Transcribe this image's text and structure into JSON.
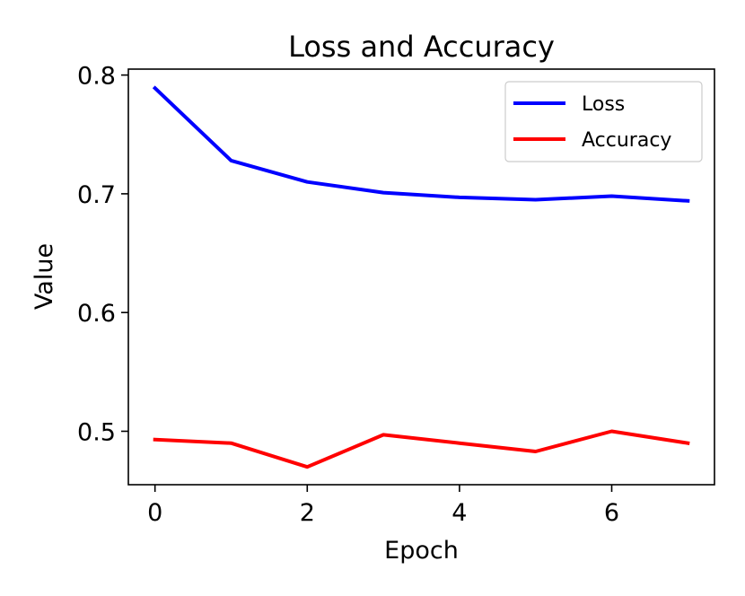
{
  "chart_data": {
    "type": "line",
    "title": "Loss and Accuracy",
    "xlabel": "Epoch",
    "ylabel": "Value",
    "x": [
      0,
      1,
      2,
      3,
      4,
      5,
      6,
      7
    ],
    "xlim": [
      -0.35,
      7.35
    ],
    "ylim": [
      0.455,
      0.805
    ],
    "xticks": [
      0,
      2,
      4,
      6
    ],
    "xtick_labels": [
      "0",
      "2",
      "4",
      "6"
    ],
    "yticks": [
      0.5,
      0.6,
      0.7,
      0.8
    ],
    "ytick_labels": [
      "0.5",
      "0.6",
      "0.7",
      "0.8"
    ],
    "grid": false,
    "legend_position": "top-right",
    "series": [
      {
        "name": "Loss",
        "color": "#0000ff",
        "values": [
          0.789,
          0.728,
          0.71,
          0.701,
          0.697,
          0.695,
          0.698,
          0.694
        ]
      },
      {
        "name": "Accuracy",
        "color": "#ff0000",
        "values": [
          0.493,
          0.49,
          0.47,
          0.497,
          0.49,
          0.483,
          0.5,
          0.49
        ]
      }
    ]
  }
}
